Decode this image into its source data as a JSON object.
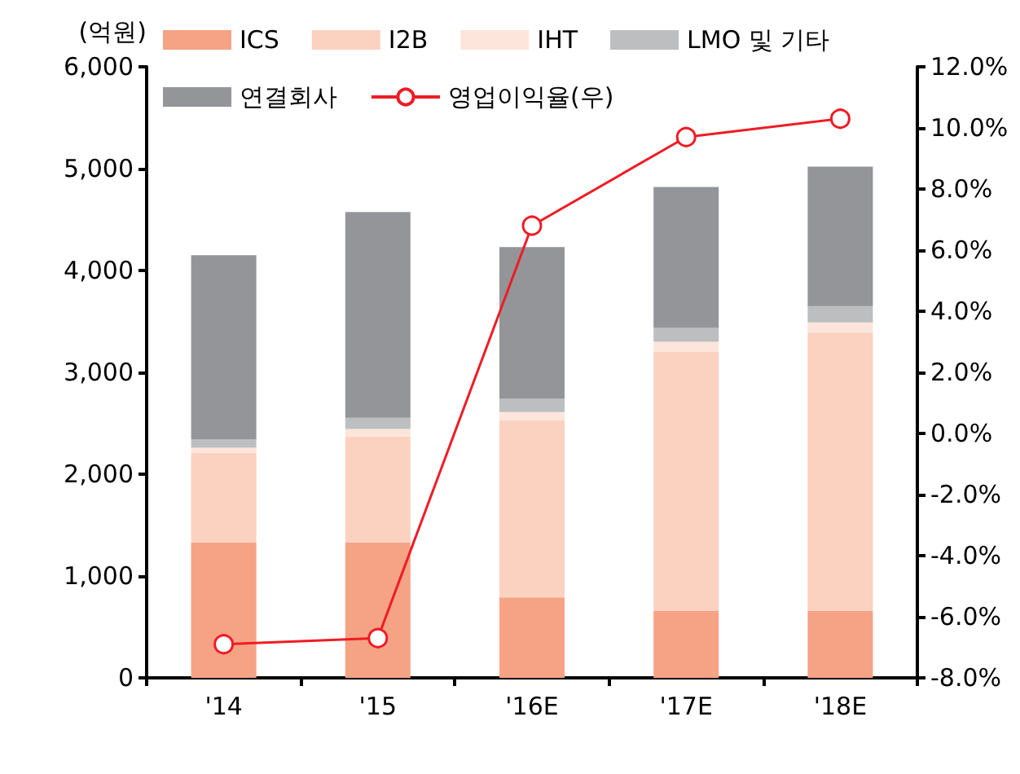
{
  "chart_data": {
    "type": "bar",
    "stacked": true,
    "ylabel": "(억원)",
    "categories": [
      "'14",
      "'15",
      "'16E",
      "'17E",
      "'18E"
    ],
    "series": [
      {
        "name": "ICS",
        "color": "#f6a284",
        "values": [
          1330,
          1330,
          790,
          660,
          660
        ]
      },
      {
        "name": "I2B",
        "color": "#fbd1c0",
        "values": [
          880,
          1040,
          1740,
          2540,
          2730
        ]
      },
      {
        "name": "IHT",
        "color": "#fde5dc",
        "values": [
          50,
          75,
          80,
          100,
          100
        ]
      },
      {
        "name": "LMO 및 기타",
        "color": "#bdbec0",
        "values": [
          80,
          110,
          130,
          140,
          160
        ]
      },
      {
        "name": "연결회사",
        "color": "#949599",
        "values": [
          1810,
          2020,
          1490,
          1380,
          1370
        ]
      },
      {
        "name": "영업이익율(우)",
        "type": "line",
        "axis": "y2",
        "color": "#ee1c25",
        "marker": "circle",
        "line_style": "solid",
        "values": [
          -6.9,
          -6.7,
          6.8,
          9.7,
          10.3
        ]
      }
    ],
    "ylim": [
      0,
      6000
    ],
    "yticks": [
      0,
      {
        "value": 1000,
        "label": "1,000"
      },
      {
        "value": 2000,
        "label": "2,000"
      },
      {
        "value": 3000,
        "label": "3,000"
      },
      {
        "value": 4000,
        "label": "4,000"
      },
      {
        "value": 5000,
        "label": "5,000"
      },
      {
        "value": 6000,
        "label": "6,000"
      }
    ],
    "y2lim": [
      -8,
      12
    ],
    "y2ticks": [
      {
        "value": -8,
        "label": "-8.0%"
      },
      {
        "value": -6,
        "label": "-6.0%"
      },
      {
        "value": -4,
        "label": "-4.0%"
      },
      {
        "value": -2,
        "label": "-2.0%"
      },
      {
        "value": 0,
        "label": "0.0%"
      },
      {
        "value": 2,
        "label": "2.0%"
      },
      {
        "value": 4,
        "label": "4.0%"
      },
      {
        "value": 6,
        "label": "6.0%"
      },
      {
        "value": 8,
        "label": "8.0%"
      },
      {
        "value": 10,
        "label": "10.0%"
      },
      {
        "value": 12,
        "label": "12.0%"
      }
    ],
    "grid": false,
    "legend": "top left"
  }
}
